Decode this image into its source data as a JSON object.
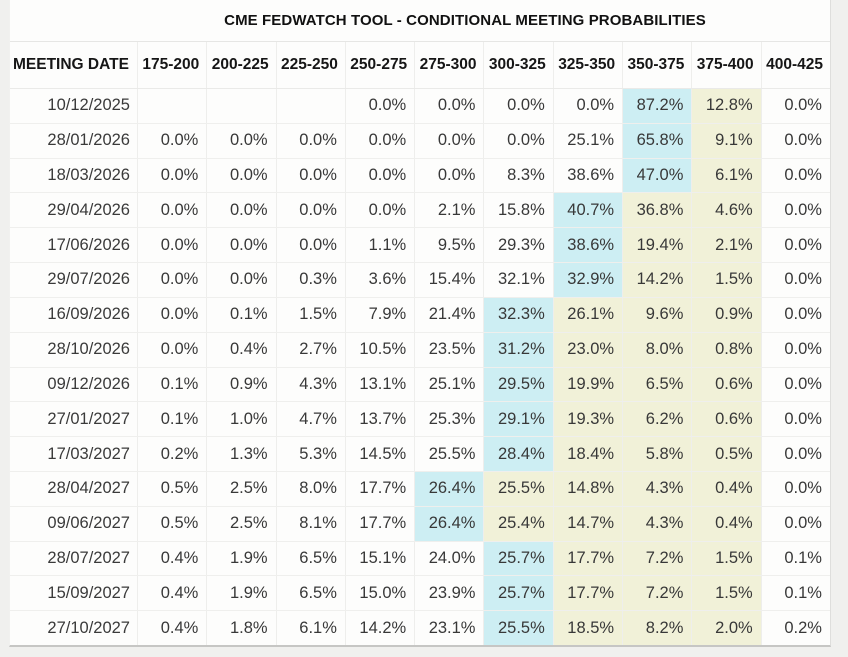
{
  "title": "CME FEDWATCH TOOL - CONDITIONAL MEETING PROBABILITIES",
  "colors": {
    "highlight_max": "#cdeef3",
    "highlight_band": "#f1f1d8",
    "header_text": "#161616",
    "cell_text": "#383838"
  },
  "chart_data": {
    "type": "table",
    "title": "CME FEDWATCH TOOL - CONDITIONAL MEETING PROBABILITIES",
    "columns": [
      "MEETING DATE",
      "175-200",
      "200-225",
      "225-250",
      "250-275",
      "275-300",
      "300-325",
      "325-350",
      "350-375",
      "375-400",
      "400-425"
    ],
    "rows": [
      {
        "date": "10/12/2025",
        "values": [
          "",
          "",
          "",
          "0.0%",
          "0.0%",
          "0.0%",
          "0.0%",
          "87.2%",
          "12.8%",
          "0.0%"
        ],
        "blue_col": 7,
        "yellow_cols": [
          8
        ]
      },
      {
        "date": "28/01/2026",
        "values": [
          "0.0%",
          "0.0%",
          "0.0%",
          "0.0%",
          "0.0%",
          "0.0%",
          "25.1%",
          "65.8%",
          "9.1%",
          "0.0%"
        ],
        "blue_col": 7,
        "yellow_cols": [
          8
        ]
      },
      {
        "date": "18/03/2026",
        "values": [
          "0.0%",
          "0.0%",
          "0.0%",
          "0.0%",
          "0.0%",
          "8.3%",
          "38.6%",
          "47.0%",
          "6.1%",
          "0.0%"
        ],
        "blue_col": 7,
        "yellow_cols": [
          8
        ]
      },
      {
        "date": "29/04/2026",
        "values": [
          "0.0%",
          "0.0%",
          "0.0%",
          "0.0%",
          "2.1%",
          "15.8%",
          "40.7%",
          "36.8%",
          "4.6%",
          "0.0%"
        ],
        "blue_col": 6,
        "yellow_cols": [
          7,
          8
        ]
      },
      {
        "date": "17/06/2026",
        "values": [
          "0.0%",
          "0.0%",
          "0.0%",
          "1.1%",
          "9.5%",
          "29.3%",
          "38.6%",
          "19.4%",
          "2.1%",
          "0.0%"
        ],
        "blue_col": 6,
        "yellow_cols": [
          7,
          8
        ]
      },
      {
        "date": "29/07/2026",
        "values": [
          "0.0%",
          "0.0%",
          "0.3%",
          "3.6%",
          "15.4%",
          "32.1%",
          "32.9%",
          "14.2%",
          "1.5%",
          "0.0%"
        ],
        "blue_col": 6,
        "yellow_cols": [
          7,
          8
        ]
      },
      {
        "date": "16/09/2026",
        "values": [
          "0.0%",
          "0.1%",
          "1.5%",
          "7.9%",
          "21.4%",
          "32.3%",
          "26.1%",
          "9.6%",
          "0.9%",
          "0.0%"
        ],
        "blue_col": 5,
        "yellow_cols": [
          6,
          7,
          8
        ]
      },
      {
        "date": "28/10/2026",
        "values": [
          "0.0%",
          "0.4%",
          "2.7%",
          "10.5%",
          "23.5%",
          "31.2%",
          "23.0%",
          "8.0%",
          "0.8%",
          "0.0%"
        ],
        "blue_col": 5,
        "yellow_cols": [
          6,
          7,
          8
        ]
      },
      {
        "date": "09/12/2026",
        "values": [
          "0.1%",
          "0.9%",
          "4.3%",
          "13.1%",
          "25.1%",
          "29.5%",
          "19.9%",
          "6.5%",
          "0.6%",
          "0.0%"
        ],
        "blue_col": 5,
        "yellow_cols": [
          6,
          7,
          8
        ]
      },
      {
        "date": "27/01/2027",
        "values": [
          "0.1%",
          "1.0%",
          "4.7%",
          "13.7%",
          "25.3%",
          "29.1%",
          "19.3%",
          "6.2%",
          "0.6%",
          "0.0%"
        ],
        "blue_col": 5,
        "yellow_cols": [
          6,
          7,
          8
        ]
      },
      {
        "date": "17/03/2027",
        "values": [
          "0.2%",
          "1.3%",
          "5.3%",
          "14.5%",
          "25.5%",
          "28.4%",
          "18.4%",
          "5.8%",
          "0.5%",
          "0.0%"
        ],
        "blue_col": 5,
        "yellow_cols": [
          6,
          7,
          8
        ]
      },
      {
        "date": "28/04/2027",
        "values": [
          "0.5%",
          "2.5%",
          "8.0%",
          "17.7%",
          "26.4%",
          "25.5%",
          "14.8%",
          "4.3%",
          "0.4%",
          "0.0%"
        ],
        "blue_col": 4,
        "yellow_cols": [
          5,
          6,
          7,
          8
        ]
      },
      {
        "date": "09/06/2027",
        "values": [
          "0.5%",
          "2.5%",
          "8.1%",
          "17.7%",
          "26.4%",
          "25.4%",
          "14.7%",
          "4.3%",
          "0.4%",
          "0.0%"
        ],
        "blue_col": 4,
        "yellow_cols": [
          5,
          6,
          7,
          8
        ]
      },
      {
        "date": "28/07/2027",
        "values": [
          "0.4%",
          "1.9%",
          "6.5%",
          "15.1%",
          "24.0%",
          "25.7%",
          "17.7%",
          "7.2%",
          "1.5%",
          "0.1%"
        ],
        "blue_col": 5,
        "yellow_cols": [
          6,
          7,
          8
        ]
      },
      {
        "date": "15/09/2027",
        "values": [
          "0.4%",
          "1.9%",
          "6.5%",
          "15.0%",
          "23.9%",
          "25.7%",
          "17.7%",
          "7.2%",
          "1.5%",
          "0.1%"
        ],
        "blue_col": 5,
        "yellow_cols": [
          6,
          7,
          8
        ]
      },
      {
        "date": "27/10/2027",
        "values": [
          "0.4%",
          "1.8%",
          "6.1%",
          "14.2%",
          "23.1%",
          "25.5%",
          "18.5%",
          "8.2%",
          "2.0%",
          "0.2%"
        ],
        "blue_col": 5,
        "yellow_cols": [
          6,
          7,
          8
        ]
      }
    ]
  }
}
